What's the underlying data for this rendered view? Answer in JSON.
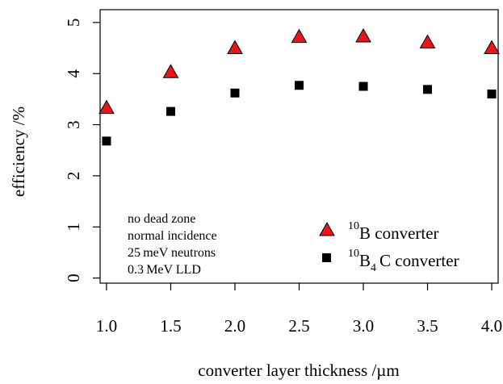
{
  "chart_data": {
    "type": "scatter",
    "xlabel": "converter layer thickness /µm",
    "ylabel": "efficiency /%",
    "xlim": [
      0.95,
      4.05
    ],
    "ylim": [
      -0.1,
      5.25
    ],
    "x_ticks": [
      1.0,
      1.5,
      2.0,
      2.5,
      3.0,
      3.5,
      4.0
    ],
    "x_tick_labels": [
      "1.0",
      "1.5",
      "2.0",
      "2.5",
      "3.0",
      "3.5",
      "4.0"
    ],
    "y_ticks": [
      0,
      1,
      2,
      3,
      4,
      5
    ],
    "y_tick_labels": [
      "0",
      "1",
      "2",
      "3",
      "4",
      "5"
    ],
    "grid": false,
    "legend_position": "bottom-right",
    "series": [
      {
        "legend_sup": "10",
        "legend_main": "B converter",
        "marker": "triangle",
        "color": "#e8151b",
        "x": [
          1.0,
          1.5,
          2.0,
          2.5,
          3.0,
          3.5,
          4.0
        ],
        "values": [
          3.33,
          4.03,
          4.5,
          4.72,
          4.73,
          4.61,
          4.5
        ]
      },
      {
        "legend_sup": "10",
        "legend_main": "B",
        "legend_sub": "4",
        "legend_tail": "C converter",
        "marker": "square",
        "color": "#000000",
        "x": [
          1.0,
          1.5,
          2.0,
          2.5,
          3.0,
          3.5,
          4.0
        ],
        "values": [
          2.68,
          3.26,
          3.62,
          3.77,
          3.75,
          3.69,
          3.6
        ]
      }
    ],
    "annotations": [
      "no dead zone",
      "normal incidence",
      "25 meV neutrons",
      "0.3 MeV LLD"
    ]
  }
}
